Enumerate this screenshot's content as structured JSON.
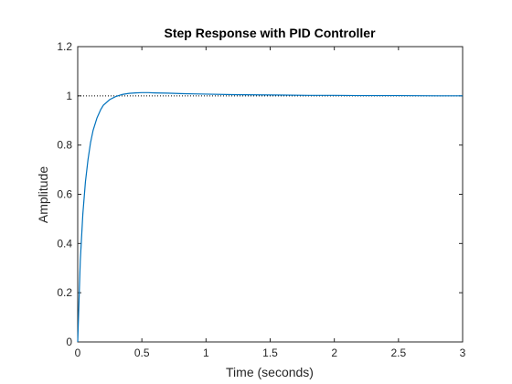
{
  "chart_data": {
    "type": "line",
    "title": "Step Response with PID Controller",
    "xlabel": "Time (seconds)",
    "ylabel": "Amplitude",
    "xlim": [
      0,
      3
    ],
    "ylim": [
      0,
      1.2
    ],
    "x_ticks": [
      "0",
      "0.5",
      "1",
      "1.5",
      "2",
      "2.5",
      "3"
    ],
    "x_tick_values": [
      0,
      0.5,
      1,
      1.5,
      2,
      2.5,
      3
    ],
    "y_ticks": [
      "0",
      "0.2",
      "0.4",
      "0.6",
      "0.8",
      "1",
      "1.2"
    ],
    "y_tick_values": [
      0,
      0.2,
      0.4,
      0.6,
      0.8,
      1,
      1.2
    ],
    "grid": false,
    "reference_line": {
      "y": 1,
      "style": "dotted",
      "color": "#000000"
    },
    "series": [
      {
        "color": "#0072bd",
        "x": [
          0,
          0.02,
          0.04,
          0.06,
          0.08,
          0.1,
          0.12,
          0.15,
          0.18,
          0.2,
          0.25,
          0.3,
          0.35,
          0.4,
          0.45,
          0.5,
          0.55,
          0.6,
          0.7,
          0.8,
          0.9,
          1.0,
          1.2,
          1.4,
          1.6,
          1.8,
          2.0,
          2.2,
          2.5,
          2.8,
          3.0
        ],
        "y": [
          0,
          0.33,
          0.52,
          0.65,
          0.74,
          0.81,
          0.86,
          0.91,
          0.945,
          0.962,
          0.985,
          0.998,
          1.006,
          1.01,
          1.012,
          1.013,
          1.013,
          1.012,
          1.011,
          1.009,
          1.008,
          1.007,
          1.005,
          1.004,
          1.003,
          1.002,
          1.002,
          1.001,
          1.001,
          1.0,
          1.0
        ]
      }
    ]
  }
}
